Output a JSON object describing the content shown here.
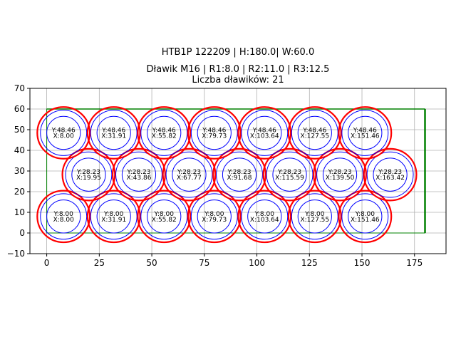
{
  "chart_data": {
    "type": "scatter",
    "title": "HTB1P 122209 | H:180.0| W:60.0",
    "subtitle_line1": "Dławik M16 | R1:8.0 | R2:11.0 | R3:12.5",
    "subtitle_line2": "Liczba dławików: 21",
    "xlabel": "",
    "ylabel": "",
    "xlim": [
      -8,
      190
    ],
    "ylim": [
      -10,
      70
    ],
    "xticks": [
      0,
      25,
      50,
      75,
      100,
      125,
      150,
      175
    ],
    "yticks": [
      -10,
      0,
      10,
      20,
      30,
      40,
      50,
      60,
      70
    ],
    "grid": true,
    "radii": {
      "r1": 8.0,
      "r2": 11.0,
      "r3": 12.5
    },
    "boundary": {
      "x": [
        0,
        180
      ],
      "y": [
        0,
        60
      ],
      "color": "#008000"
    },
    "colors": {
      "outer": "#ff0000",
      "inner": "#0000ff",
      "grid": "#b0b0b0"
    },
    "points": [
      {
        "x": 8.0,
        "y": 8.0,
        "xl": "X:8.00",
        "yl": "Y:8.00"
      },
      {
        "x": 31.91,
        "y": 8.0,
        "xl": "X:31.91",
        "yl": "Y:8.00"
      },
      {
        "x": 55.82,
        "y": 8.0,
        "xl": "X:55.82",
        "yl": "Y:8.00"
      },
      {
        "x": 79.73,
        "y": 8.0,
        "xl": "X:79.73",
        "yl": "Y:8.00"
      },
      {
        "x": 103.64,
        "y": 8.0,
        "xl": "X:103.64",
        "yl": "Y:8.00"
      },
      {
        "x": 127.55,
        "y": 8.0,
        "xl": "X:127.55",
        "yl": "Y:8.00"
      },
      {
        "x": 151.46,
        "y": 8.0,
        "xl": "X:151.46",
        "yl": "Y:8.00"
      },
      {
        "x": 19.95,
        "y": 28.23,
        "xl": "X:19.95",
        "yl": "Y:28.23"
      },
      {
        "x": 43.86,
        "y": 28.23,
        "xl": "X:43.86",
        "yl": "Y:28.23"
      },
      {
        "x": 67.77,
        "y": 28.23,
        "xl": "X:67.77",
        "yl": "Y:28.23"
      },
      {
        "x": 91.68,
        "y": 28.23,
        "xl": "X:91.68",
        "yl": "Y:28.23"
      },
      {
        "x": 115.59,
        "y": 28.23,
        "xl": "X:115.59",
        "yl": "Y:28.23"
      },
      {
        "x": 139.5,
        "y": 28.23,
        "xl": "X:139.50",
        "yl": "Y:28.23"
      },
      {
        "x": 163.42,
        "y": 28.23,
        "xl": "X:163.42",
        "yl": "Y:28.23"
      },
      {
        "x": 8.0,
        "y": 48.46,
        "xl": "X:8.00",
        "yl": "Y:48.46"
      },
      {
        "x": 31.91,
        "y": 48.46,
        "xl": "X:31.91",
        "yl": "Y:48.46"
      },
      {
        "x": 55.82,
        "y": 48.46,
        "xl": "X:55.82",
        "yl": "Y:48.46"
      },
      {
        "x": 79.73,
        "y": 48.46,
        "xl": "X:79.73",
        "yl": "Y:48.46"
      },
      {
        "x": 103.64,
        "y": 48.46,
        "xl": "X:103.64",
        "yl": "Y:48.46"
      },
      {
        "x": 127.55,
        "y": 48.46,
        "xl": "X:127.55",
        "yl": "Y:48.46"
      },
      {
        "x": 151.46,
        "y": 48.46,
        "xl": "X:151.46",
        "yl": "Y:48.46"
      }
    ]
  }
}
